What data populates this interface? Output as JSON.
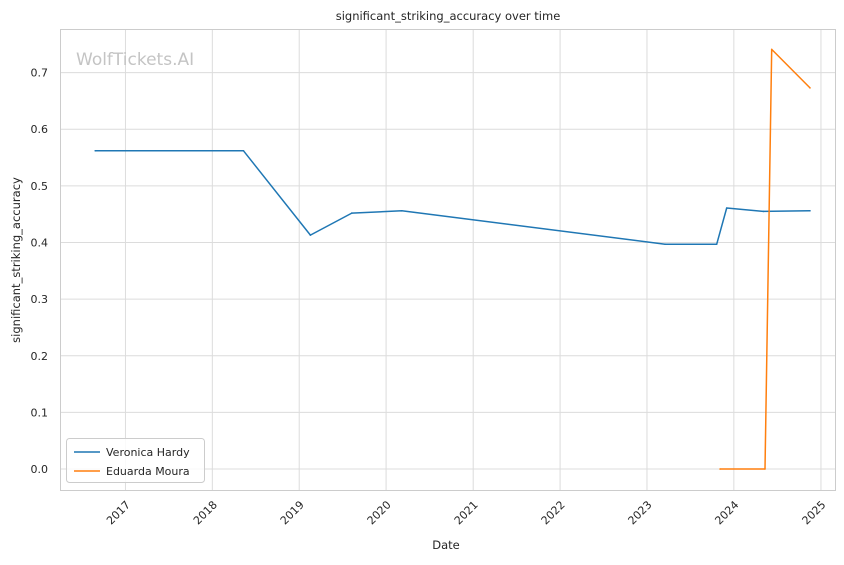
{
  "watermark": "WolfTickets.AI",
  "chart_data": {
    "type": "line",
    "title": "significant_striking_accuracy over time",
    "xlabel": "Date",
    "ylabel": "significant_striking_accuracy",
    "x_range": [
      "2016-04-01",
      "2025-03-01"
    ],
    "ylim": [
      -0.037,
      0.777
    ],
    "x_ticks": [
      "2017",
      "2018",
      "2019",
      "2020",
      "2021",
      "2022",
      "2023",
      "2024",
      "2025"
    ],
    "y_ticks": [
      "0.0",
      "0.1",
      "0.2",
      "0.3",
      "0.4",
      "0.5",
      "0.6",
      "0.7"
    ],
    "grid": true,
    "legend_position": "lower-left",
    "series": [
      {
        "name": "Veronica Hardy",
        "color": "#1f77b4",
        "points": [
          {
            "x": "2016-08-27",
            "y": 0.562
          },
          {
            "x": "2018-05-12",
            "y": 0.562
          },
          {
            "x": "2019-02-17",
            "y": 0.413
          },
          {
            "x": "2019-08-10",
            "y": 0.452
          },
          {
            "x": "2020-03-07",
            "y": 0.456
          },
          {
            "x": "2023-03-18",
            "y": 0.397
          },
          {
            "x": "2023-10-21",
            "y": 0.397
          },
          {
            "x": "2023-12-02",
            "y": 0.461
          },
          {
            "x": "2024-05-04",
            "y": 0.455
          },
          {
            "x": "2024-11-16",
            "y": 0.456
          }
        ]
      },
      {
        "name": "Eduarda Moura",
        "color": "#ff7f0e",
        "points": [
          {
            "x": "2023-11-04",
            "y": 0.0
          },
          {
            "x": "2024-05-11",
            "y": 0.0
          },
          {
            "x": "2024-06-08",
            "y": 0.741
          },
          {
            "x": "2024-11-16",
            "y": 0.673
          }
        ]
      }
    ]
  }
}
